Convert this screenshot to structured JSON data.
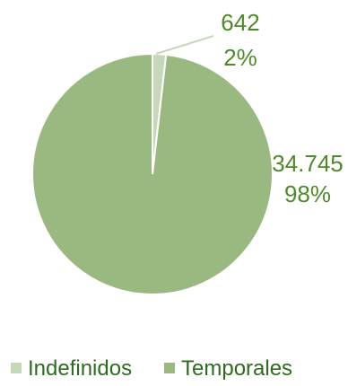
{
  "chart_data": {
    "type": "pie",
    "categories": [
      "Indefinidos",
      "Temporales"
    ],
    "values": [
      642,
      34745
    ],
    "value_labels": [
      "642",
      "34.745"
    ],
    "percent_labels": [
      "2%",
      "98%"
    ],
    "colors": [
      "#C5D9B8",
      "#9AB981"
    ],
    "label_color": "#4E8A2A",
    "legend_text_color": "#2E6B1F",
    "legend_position": "bottom",
    "title": ""
  }
}
